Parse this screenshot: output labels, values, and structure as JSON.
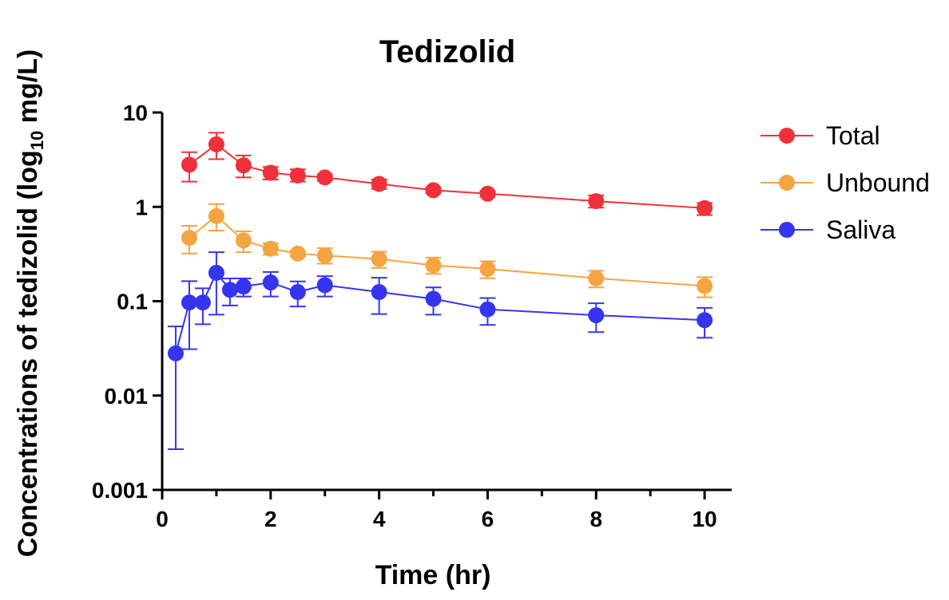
{
  "chart_data": {
    "type": "line",
    "title": "Tedizolid",
    "xlabel": "Time (hr)",
    "ylabel": {
      "prefix": "Concentrations of tedizolid (log",
      "subscript": "10",
      "suffix": " mg/L)"
    },
    "xlim": [
      0,
      10.5
    ],
    "ylim": [
      0.001,
      10
    ],
    "y_scale": "log",
    "x_ticks": [
      0,
      2,
      4,
      6,
      8,
      10
    ],
    "x_tick_labels": [
      "0",
      "2",
      "4",
      "6",
      "8",
      "10"
    ],
    "x_minor_ticks": [
      1,
      3,
      5,
      7,
      9
    ],
    "y_ticks": [
      0.001,
      0.01,
      0.1,
      1,
      10
    ],
    "y_tick_labels": [
      "0.001",
      "0.01",
      "0.1",
      "1",
      "10"
    ],
    "legend_position": "right",
    "series": [
      {
        "name": "Total",
        "color": "#f0303a",
        "points": [
          {
            "x": 0.5,
            "y": 2.8,
            "lo": 1.85,
            "hi": 3.8
          },
          {
            "x": 1.0,
            "y": 4.6,
            "lo": 3.2,
            "hi": 6.1
          },
          {
            "x": 1.5,
            "y": 2.75,
            "lo": 2.05,
            "hi": 3.5
          },
          {
            "x": 2.0,
            "y": 2.3,
            "lo": 1.95,
            "hi": 2.65
          },
          {
            "x": 2.5,
            "y": 2.15,
            "lo": 1.85,
            "hi": 2.5
          },
          {
            "x": 3.0,
            "y": 2.05,
            "lo": 1.9,
            "hi": 2.2
          },
          {
            "x": 4.0,
            "y": 1.75,
            "lo": 1.55,
            "hi": 1.95
          },
          {
            "x": 5.0,
            "y": 1.5,
            "lo": 1.4,
            "hi": 1.6
          },
          {
            "x": 6.0,
            "y": 1.38,
            "lo": 1.28,
            "hi": 1.48
          },
          {
            "x": 8.0,
            "y": 1.15,
            "lo": 0.98,
            "hi": 1.32
          },
          {
            "x": 10.0,
            "y": 0.97,
            "lo": 0.82,
            "hi": 1.1
          }
        ]
      },
      {
        "name": "Unbound",
        "color": "#f5a442",
        "points": [
          {
            "x": 0.5,
            "y": 0.47,
            "lo": 0.32,
            "hi": 0.63
          },
          {
            "x": 1.0,
            "y": 0.8,
            "lo": 0.56,
            "hi": 1.07
          },
          {
            "x": 1.5,
            "y": 0.44,
            "lo": 0.33,
            "hi": 0.55
          },
          {
            "x": 2.0,
            "y": 0.36,
            "lo": 0.31,
            "hi": 0.41
          },
          {
            "x": 2.5,
            "y": 0.32,
            "lo": 0.3,
            "hi": 0.34
          },
          {
            "x": 3.0,
            "y": 0.305,
            "lo": 0.25,
            "hi": 0.365
          },
          {
            "x": 4.0,
            "y": 0.28,
            "lo": 0.225,
            "hi": 0.335
          },
          {
            "x": 5.0,
            "y": 0.24,
            "lo": 0.195,
            "hi": 0.29
          },
          {
            "x": 6.0,
            "y": 0.22,
            "lo": 0.175,
            "hi": 0.265
          },
          {
            "x": 8.0,
            "y": 0.175,
            "lo": 0.14,
            "hi": 0.21
          },
          {
            "x": 10.0,
            "y": 0.145,
            "lo": 0.11,
            "hi": 0.18
          }
        ]
      },
      {
        "name": "Saliva",
        "color": "#3535f0",
        "points": [
          {
            "x": 0.25,
            "y": 0.028,
            "lo": 0.0027,
            "hi": 0.054
          },
          {
            "x": 0.5,
            "y": 0.097,
            "lo": 0.031,
            "hi": 0.163
          },
          {
            "x": 0.75,
            "y": 0.097,
            "lo": 0.057,
            "hi": 0.137
          },
          {
            "x": 1.0,
            "y": 0.2,
            "lo": 0.072,
            "hi": 0.33
          },
          {
            "x": 1.25,
            "y": 0.132,
            "lo": 0.09,
            "hi": 0.174
          },
          {
            "x": 1.5,
            "y": 0.143,
            "lo": 0.112,
            "hi": 0.174
          },
          {
            "x": 2.0,
            "y": 0.158,
            "lo": 0.112,
            "hi": 0.204
          },
          {
            "x": 2.5,
            "y": 0.125,
            "lo": 0.088,
            "hi": 0.162
          },
          {
            "x": 3.0,
            "y": 0.148,
            "lo": 0.112,
            "hi": 0.184
          },
          {
            "x": 4.0,
            "y": 0.125,
            "lo": 0.073,
            "hi": 0.177
          },
          {
            "x": 5.0,
            "y": 0.106,
            "lo": 0.072,
            "hi": 0.14
          },
          {
            "x": 6.0,
            "y": 0.082,
            "lo": 0.056,
            "hi": 0.108
          },
          {
            "x": 8.0,
            "y": 0.071,
            "lo": 0.047,
            "hi": 0.095
          },
          {
            "x": 10.0,
            "y": 0.063,
            "lo": 0.041,
            "hi": 0.085
          }
        ]
      }
    ]
  }
}
